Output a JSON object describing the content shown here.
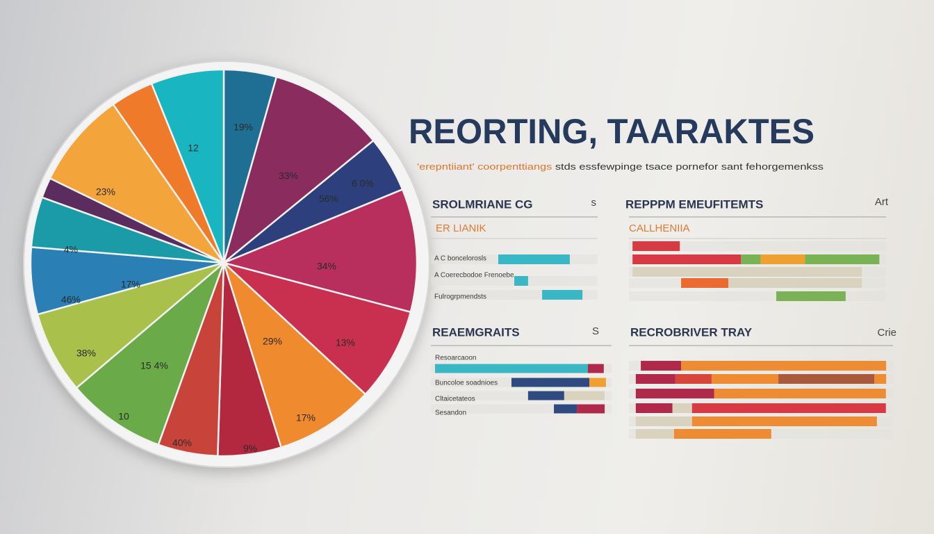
{
  "header": {
    "title": "REORTING, TAARAKTES",
    "subtitle_highlight": "'erepntiiant' coorpenttiangs",
    "subtitle": "stds essfewpinge tsace pornefor sant fehorgemenkss"
  },
  "chart_data": [
    {
      "type": "pie",
      "categories": [
        null,
        null,
        null,
        null,
        null,
        null,
        null,
        null,
        null,
        null,
        null,
        null,
        null,
        null,
        null,
        null
      ],
      "values": [
        4.4,
        9.7,
        4.7,
        10.3,
        7.8,
        8.3,
        5.3,
        5,
        8.3,
        6.9,
        5.6,
        4.2,
        1.7,
        8.1,
        3.6,
        6.1
      ],
      "colors": [
        "#1f6f94",
        "#8b2c5f",
        "#2d3f7c",
        "#b82e5c",
        "#c93050",
        "#ef8a2e",
        "#b3283f",
        "#c8443a",
        "#6aaa48",
        "#a9c04a",
        "#2a7fb5",
        "#1b9aa8",
        "#5a2d5e",
        "#f3a43a",
        "#ee7a2a",
        "#19b5c0"
      ],
      "annotations": [
        "19%",
        "12",
        "23%",
        "33%",
        "6 0%",
        "56%",
        "34%",
        "13%",
        "29%",
        "17%",
        "9%",
        "40%",
        "10",
        "15 4%",
        "38%",
        "17%",
        "46%",
        "4%"
      ]
    },
    {
      "type": "bar",
      "orientation": "horizontal",
      "title": "SROLMRIANE CG",
      "title_right": "s",
      "subtitle": "ER LIANIK",
      "xlim": [
        0,
        100
      ],
      "categories": [
        "A C boncelorosls",
        "A Coerecbodoe Frenoebe",
        "Fulrogrpmendsts"
      ],
      "bars": [
        {
          "start": 40.4,
          "values": [
            42.9
          ],
          "colors": [
            "#3ab7c4"
          ]
        },
        {
          "start": 50,
          "values": [
            8.3
          ],
          "colors": [
            "#3ab7c4"
          ]
        },
        {
          "start": 66.7,
          "values": [
            24.2
          ],
          "colors": [
            "#3ab7c4"
          ]
        }
      ]
    },
    {
      "type": "bar",
      "orientation": "horizontal",
      "title": "REPPPM EMEUFITEMTS",
      "title_right": "Art",
      "subtitle": "CALLHENIIA",
      "xlim": [
        0,
        100
      ],
      "categories": [
        null,
        null,
        null,
        null,
        null
      ],
      "bars": [
        {
          "start": 1.4,
          "values": [
            18.4
          ],
          "colors": [
            "#d83a44"
          ]
        },
        {
          "start": 1.4,
          "values": [
            42.2,
            7.6,
            17.3,
            28.9
          ],
          "colors": [
            "#d83a44",
            "#7ab356",
            "#f0a030",
            "#7ab356"
          ]
        },
        {
          "start": 1.4,
          "values": [
            89.2
          ],
          "colors": [
            "#d9d2bf"
          ]
        },
        {
          "start": 20.3,
          "values": [
            18.4,
            51.9
          ],
          "colors": [
            "#ea6a30",
            "#d9d2bf"
          ]
        },
        {
          "start": 57.3,
          "values": [
            27
          ],
          "colors": [
            "#7ab356"
          ]
        }
      ]
    },
    {
      "type": "bar",
      "orientation": "horizontal",
      "title": "REAEMGRAITS",
      "title_right": "S",
      "xlim": [
        0,
        100
      ],
      "categories": [
        "Resoarcaoon",
        "Buncoloe soadnioes",
        "Cltaicetateos",
        "Sesandon"
      ],
      "bars": [
        {
          "start": 2.3,
          "values": [
            84.6,
            8.8
          ],
          "colors": [
            "#3ab7c4",
            "#b0284a"
          ]
        },
        {
          "start": 44.6,
          "values": [
            43.1,
            9.2
          ],
          "colors": [
            "#2f4a80",
            "#f0a030"
          ]
        },
        {
          "start": 53.8,
          "values": [
            20,
            22.3
          ],
          "colors": [
            "#2f4a80",
            "#d9d2bf"
          ]
        },
        {
          "start": 68.1,
          "values": [
            12.7,
            15.4
          ],
          "colors": [
            "#2f4a80",
            "#b0284a"
          ]
        }
      ]
    },
    {
      "type": "bar",
      "orientation": "horizontal",
      "title": "RECROBRIVER TRAY",
      "title_right": "Crie",
      "xlim": [
        0,
        100
      ],
      "categories": [
        null,
        null,
        null,
        null,
        null,
        null
      ],
      "bars": [
        {
          "start": 4.5,
          "values": [
            15.3,
            77.6
          ],
          "colors": [
            "#b0284a",
            "#ef8b32"
          ]
        },
        {
          "start": 2.6,
          "values": [
            15,
            13.7,
            25.3,
            36.3,
            4.5
          ],
          "colors": [
            "#b0284a",
            "#d8453a",
            "#ef8b32",
            "#a85a3a",
            "#ef8b32"
          ]
        },
        {
          "start": 2.6,
          "values": [
            29.7,
            65
          ],
          "colors": [
            "#b0284a",
            "#ef8b32"
          ]
        },
        {
          "start": 2.6,
          "values": [
            13.9,
            7.4,
            73.4
          ],
          "colors": [
            "#b0284a",
            "#d9d2bf",
            "#d83a44"
          ]
        },
        {
          "start": 2.6,
          "values": [
            21.3,
            70
          ],
          "colors": [
            "#d9d2bf",
            "#ef8b32"
          ]
        },
        {
          "start": 2.6,
          "values": [
            14.5,
            36.8
          ],
          "colors": [
            "#d9d2bf",
            "#ef8b32"
          ]
        }
      ]
    }
  ]
}
